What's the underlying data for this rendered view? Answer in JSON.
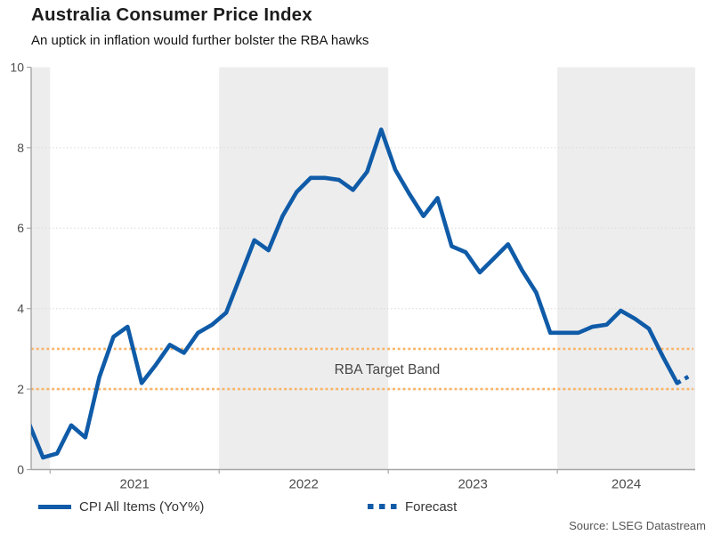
{
  "header": {
    "title": "Australia Consumer Price Index",
    "subtitle": "An uptick in inflation would further bolster the RBA hawks"
  },
  "chart_data": {
    "type": "line",
    "title": "Australia Consumer Price Index",
    "subtitle": "An uptick in inflation would further bolster the RBA hawks",
    "ylim": [
      0,
      10
    ],
    "yticks": [
      0,
      2,
      4,
      6,
      8,
      10
    ],
    "gridlines_y": [
      2,
      4,
      6,
      8
    ],
    "grid": "dotted",
    "x_year_labels": [
      "2021",
      "2022",
      "2023",
      "2024"
    ],
    "series": [
      {
        "name": "CPI All Items (YoY%)",
        "months": [
          "Nov-2020",
          "Dec-2020",
          "Jan-2021",
          "Feb-2021",
          "Mar-2021",
          "Apr-2021",
          "May-2021",
          "Jun-2021",
          "Jul-2021",
          "Aug-2021",
          "Sep-2021",
          "Oct-2021",
          "Nov-2021",
          "Dec-2021",
          "Jan-2022",
          "Feb-2022",
          "Mar-2022",
          "Apr-2022",
          "May-2022",
          "Jun-2022",
          "Jul-2022",
          "Aug-2022",
          "Sep-2022",
          "Oct-2022",
          "Nov-2022",
          "Dec-2022",
          "Jan-2023",
          "Feb-2023",
          "Mar-2023",
          "Apr-2023",
          "May-2023",
          "Jun-2023",
          "Jul-2023",
          "Aug-2023",
          "Sep-2023",
          "Oct-2023",
          "Nov-2023",
          "Dec-2023",
          "Jan-2024",
          "Feb-2024",
          "Mar-2024",
          "Apr-2024",
          "May-2024",
          "Jun-2024",
          "Jul-2024",
          "Aug-2024",
          "Sep-2024"
        ],
        "values": [
          1.15,
          0.3,
          0.4,
          1.1,
          0.8,
          2.3,
          3.3,
          3.55,
          2.15,
          2.6,
          3.1,
          2.9,
          3.4,
          3.6,
          3.9,
          4.8,
          5.7,
          5.45,
          6.3,
          6.9,
          7.25,
          7.25,
          7.2,
          6.95,
          7.4,
          8.45,
          7.45,
          6.85,
          6.3,
          6.75,
          5.55,
          5.4,
          4.9,
          5.25,
          5.6,
          4.95,
          4.4,
          3.4,
          3.4,
          3.4,
          3.55,
          3.6,
          3.95,
          3.75,
          3.5,
          2.8,
          2.15
        ]
      }
    ],
    "forecast": {
      "name": "Forecast",
      "months": [
        "Sep-2024",
        "Oct-2024"
      ],
      "values": [
        2.15,
        2.35
      ]
    },
    "target_band": {
      "label": "RBA Target Band",
      "lower": 2,
      "upper": 3
    },
    "legend_position": "bottom",
    "colors": {
      "line": "#0F5BA8",
      "target_band_line": "#F9B466",
      "band_shade": "#EDEDED",
      "gridline": "#D9D9D9",
      "axis": "#A6A6A6",
      "tick_text": "#4D4D4D",
      "annotation_text": "#454545"
    }
  },
  "legend": {
    "items": [
      {
        "label": "CPI All Items (YoY%)",
        "style": "solid"
      },
      {
        "label": "Forecast",
        "style": "dashed"
      }
    ]
  },
  "source": {
    "text": "Source: LSEG Datastream"
  }
}
